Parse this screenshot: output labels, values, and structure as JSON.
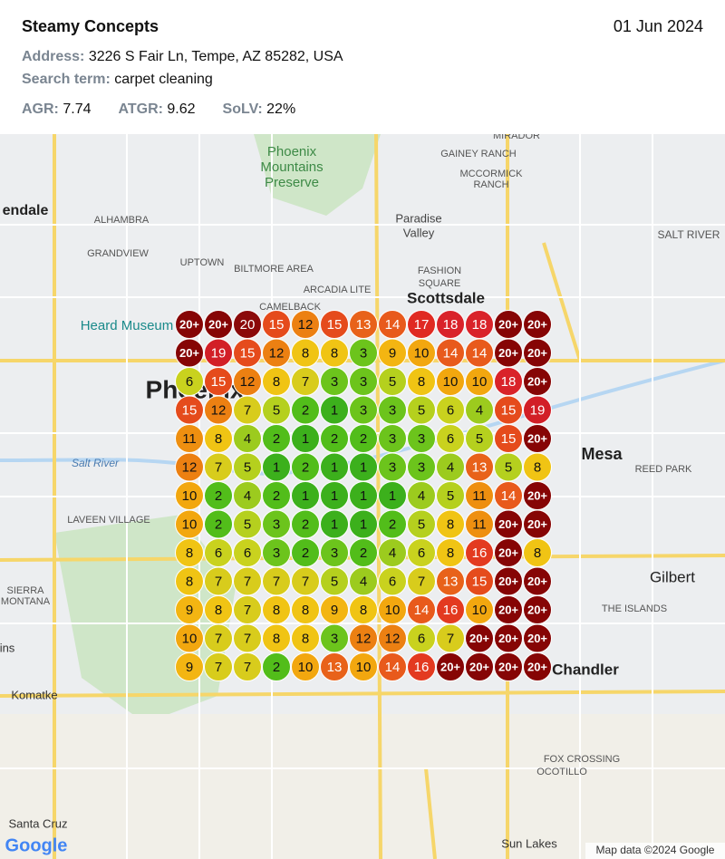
{
  "header": {
    "title": "Steamy Concepts",
    "date": "01 Jun 2024",
    "address_label": "Address:",
    "address": "3226 S Fair Ln, Tempe, AZ 85282, USA",
    "search_label": "Search term:",
    "search_term": "carpet cleaning",
    "metrics": [
      {
        "label": "AGR:",
        "value": "7.74"
      },
      {
        "label": "ATGR:",
        "value": "9.62"
      },
      {
        "label": "SoLV:",
        "value": "22%"
      }
    ]
  },
  "grid": {
    "rows": [
      [
        "20+",
        "20+",
        "20",
        "15",
        "12",
        "15",
        "13",
        "14",
        "17",
        "18",
        "18",
        "20+",
        "20+"
      ],
      [
        "20+",
        "19",
        "15",
        "12",
        "8",
        "8",
        "3",
        "9",
        "10",
        "14",
        "14",
        "20+",
        "20+"
      ],
      [
        "6",
        "15",
        "12",
        "8",
        "7",
        "3",
        "3",
        "5",
        "8",
        "10",
        "10",
        "18",
        "20+"
      ],
      [
        "15",
        "12",
        "7",
        "5",
        "2",
        "1",
        "3",
        "3",
        "5",
        "6",
        "4",
        "15",
        "19"
      ],
      [
        "11",
        "8",
        "4",
        "2",
        "1",
        "2",
        "2",
        "3",
        "3",
        "6",
        "5",
        "15",
        "20+"
      ],
      [
        "12",
        "7",
        "5",
        "1",
        "2",
        "1",
        "1",
        "3",
        "3",
        "4",
        "13",
        "5",
        "8"
      ],
      [
        "10",
        "2",
        "4",
        "2",
        "1",
        "1",
        "1",
        "1",
        "4",
        "5",
        "11",
        "14",
        "20+"
      ],
      [
        "10",
        "2",
        "5",
        "3",
        "2",
        "1",
        "1",
        "2",
        "5",
        "8",
        "11",
        "20+",
        "20+"
      ],
      [
        "8",
        "6",
        "6",
        "3",
        "2",
        "3",
        "2",
        "4",
        "6",
        "8",
        "16",
        "20+",
        "8"
      ],
      [
        "8",
        "7",
        "7",
        "7",
        "7",
        "5",
        "4",
        "6",
        "7",
        "13",
        "15",
        "20+",
        "20+"
      ],
      [
        "9",
        "8",
        "7",
        "8",
        "8",
        "9",
        "8",
        "10",
        "14",
        "16",
        "10",
        "20+",
        "20+"
      ],
      [
        "10",
        "7",
        "7",
        "8",
        "8",
        "3",
        "12",
        "12",
        "6",
        "7",
        "20+",
        "20+",
        "20+"
      ],
      [
        "9",
        "7",
        "7",
        "2",
        "10",
        "13",
        "10",
        "14",
        "16",
        "20+",
        "20+",
        "20+",
        "20+"
      ]
    ]
  },
  "map": {
    "labels": [
      "Phoenix",
      "Mountains",
      "Preserve",
      "endale",
      "ALHAMBRA",
      "GRANDVIEW",
      "UPTOWN",
      "BILTMORE AREA",
      "ARCADIA LITE",
      "CAMELBACK",
      "Paradise",
      "Valley",
      "FASHION",
      "SQUARE",
      "Scottsdale",
      "GAINEY RANCH",
      "MCCORMICK",
      "RANCH",
      "MIRADOR",
      "SALT RIVER",
      "Heard Museum",
      "Phoenix",
      "Salt River",
      "LAVEEN VILLAGE",
      "Mesa",
      "REED PARK",
      "Gilbert",
      "THE ISLANDS",
      "Chandler",
      "Komatke",
      "FOX CROSSING",
      "OCOTILLO",
      "Santa Cruz",
      "Sun Lakes",
      "SIERRA",
      "MONTANA",
      "ins"
    ],
    "attribution": "Map data ©2024 Google",
    "logo": "Google"
  }
}
